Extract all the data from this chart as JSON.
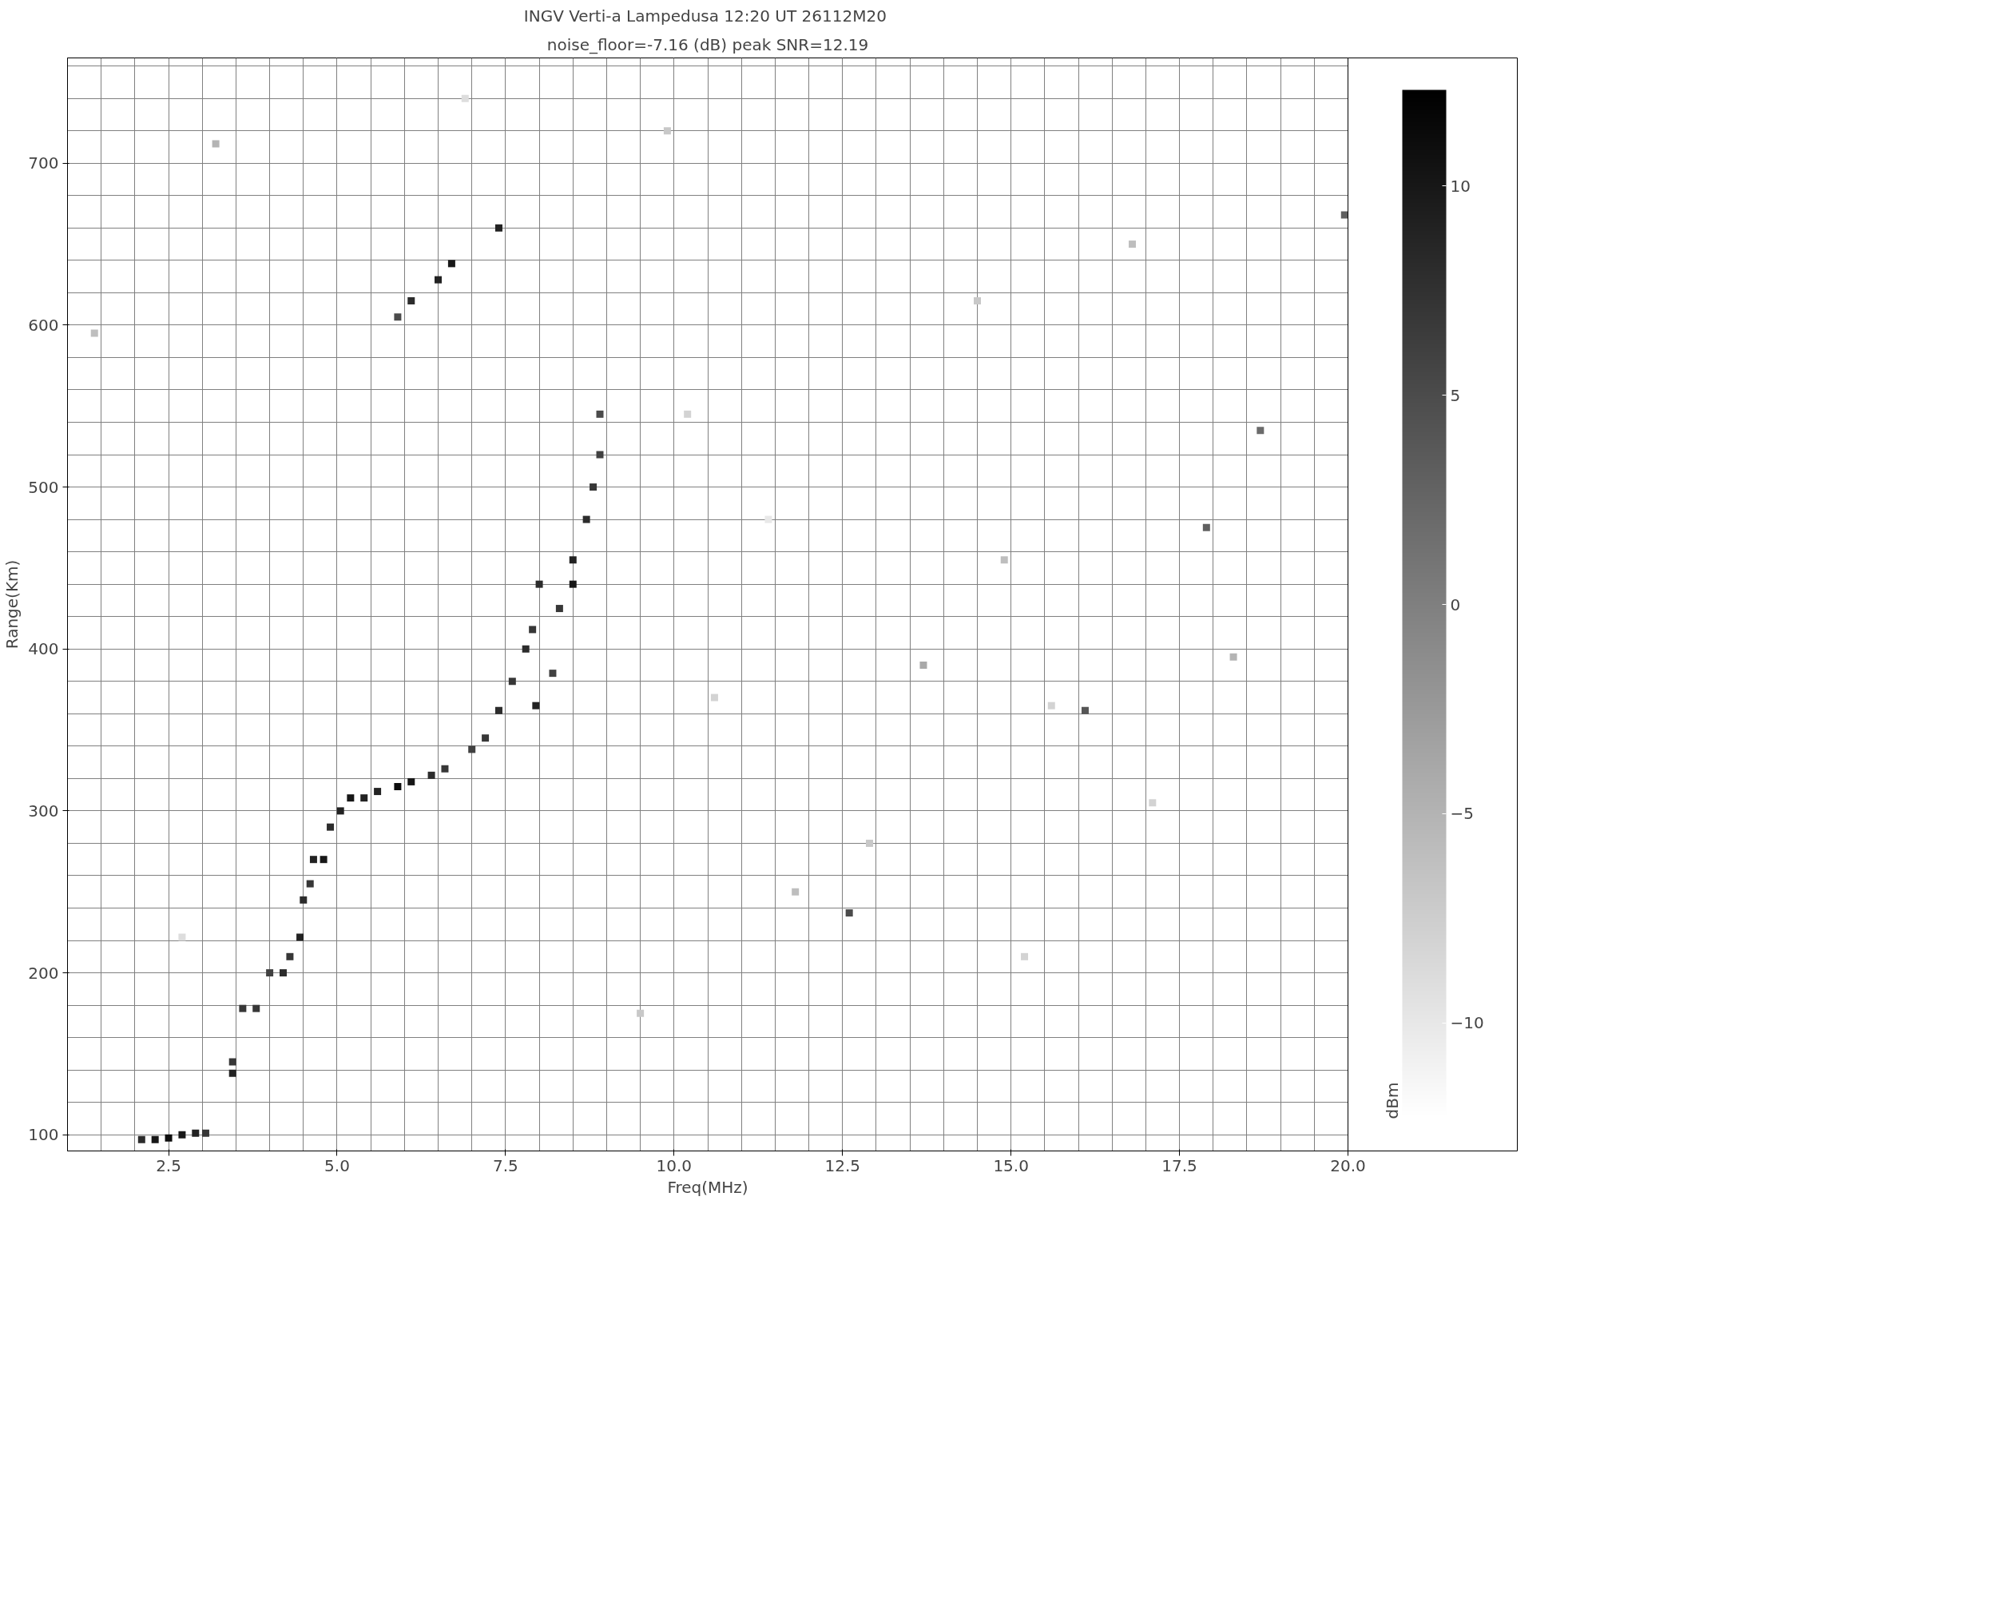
{
  "chart_data": {
    "type": "scatter",
    "title": "INGV Verti-a Lampedusa  12:20 UT 26112M20",
    "subtitle": "noise_floor=-7.16 (dB) peak SNR=12.19",
    "xlabel": "Freq(MHz)",
    "ylabel": "Range(Km)",
    "clabel": "dBm",
    "xlim": [
      1,
      20
    ],
    "ylim": [
      90,
      765
    ],
    "xticks": [
      {
        "value": 2.5,
        "label": "2.5"
      },
      {
        "value": 5,
        "label": "5.0"
      },
      {
        "value": 7.5,
        "label": "7.5"
      },
      {
        "value": 10,
        "label": "10.0"
      },
      {
        "value": 12.5,
        "label": "12.5"
      },
      {
        "value": 15,
        "label": "15.0"
      },
      {
        "value": 17.5,
        "label": "17.5"
      },
      {
        "value": 20,
        "label": "20.0"
      }
    ],
    "yticks": [
      100,
      200,
      300,
      400,
      500,
      600,
      700
    ],
    "clim": [
      -12.3,
      12.3
    ],
    "cticks": [
      {
        "value": -10,
        "label": "−10"
      },
      {
        "value": -5,
        "label": "−5"
      },
      0,
      5,
      10
    ],
    "grid": true,
    "marker": "square",
    "x": [
      2.1,
      2.3,
      2.5,
      2.7,
      2.9,
      3.05,
      3.45,
      3.45,
      3.6,
      3.8,
      4.0,
      4.2,
      4.3,
      4.45,
      4.5,
      4.6,
      4.65,
      4.8,
      4.9,
      5.05,
      5.2,
      5.4,
      5.6,
      5.9,
      6.1,
      6.4,
      6.6,
      7.0,
      7.2,
      7.4,
      7.6,
      7.8,
      7.9,
      8.0,
      7.95,
      8.2,
      8.3,
      8.5,
      8.5,
      8.7,
      8.8,
      8.9,
      8.9,
      5.9,
      6.1,
      6.5,
      6.7,
      7.4,
      12.6,
      16.1,
      17.9,
      18.7,
      19.95,
      1.4,
      3.2,
      9.5,
      10.6,
      11.8,
      13.7,
      14.5,
      15.2,
      16.8,
      18.3,
      6.9,
      10.2,
      12.9,
      14.9,
      17.1,
      2.7,
      9.9,
      11.4,
      15.6
    ],
    "values": [
      97,
      97,
      98,
      100,
      101,
      101,
      138,
      145,
      178,
      178,
      200,
      200,
      210,
      222,
      245,
      255,
      270,
      270,
      290,
      300,
      308,
      308,
      312,
      315,
      318,
      322,
      326,
      338,
      345,
      362,
      380,
      400,
      412,
      440,
      365,
      385,
      425,
      455,
      440,
      480,
      500,
      520,
      545,
      605,
      615,
      628,
      638,
      660,
      237,
      362,
      475,
      535,
      668,
      595,
      712,
      175,
      370,
      250,
      390,
      615,
      210,
      650,
      395,
      740,
      545,
      280,
      455,
      305,
      222,
      720,
      480,
      365
    ],
    "cvalues": [
      8,
      10,
      11,
      10,
      9,
      7,
      9,
      7,
      7,
      7,
      6,
      8,
      7,
      9,
      8,
      7,
      9,
      10,
      8,
      9,
      10,
      9,
      9,
      11,
      10,
      8,
      7,
      6,
      7,
      8,
      7,
      8,
      7,
      8,
      9,
      6,
      7,
      9,
      10,
      8,
      7,
      6,
      5,
      5,
      8,
      9,
      10,
      9,
      5,
      4,
      3,
      2,
      3,
      -6,
      -5,
      -7,
      -8,
      -6,
      -4,
      -7,
      -8,
      -6,
      -5,
      -9,
      -8,
      -7,
      -6,
      -8,
      -9,
      -7,
      -10,
      -8
    ]
  }
}
